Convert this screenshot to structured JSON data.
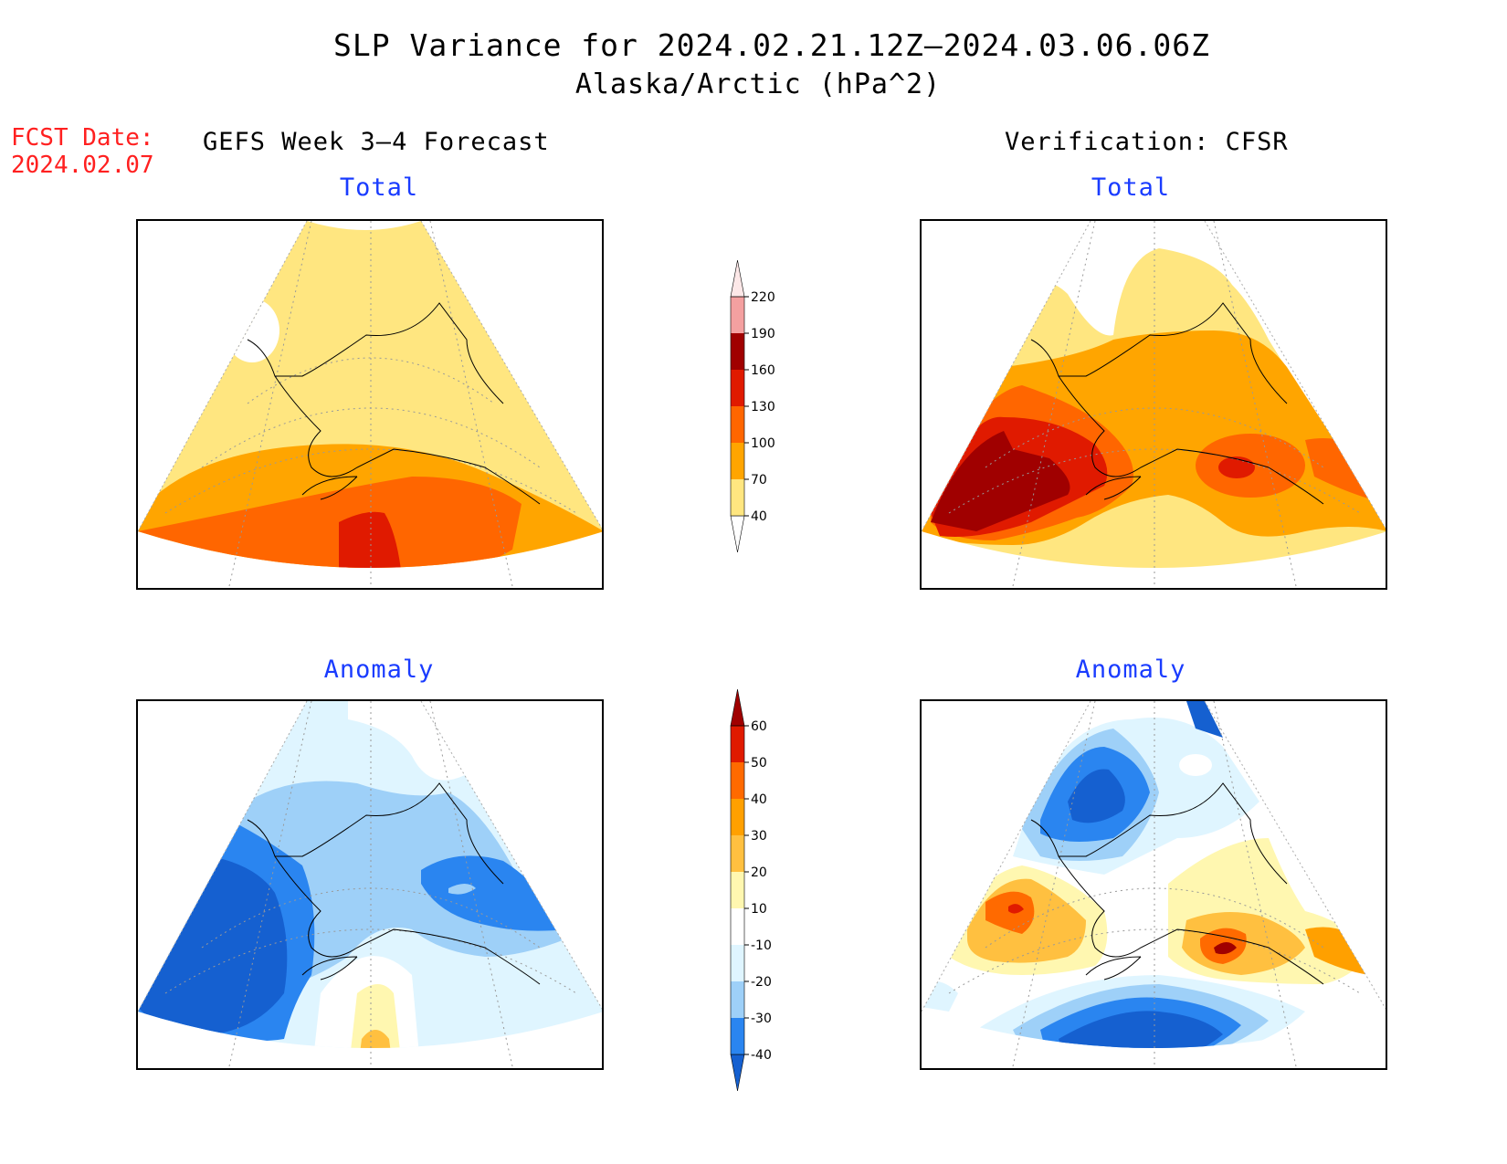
{
  "title": {
    "line1": "SLP Variance for 2024.02.21.12Z–2024.03.06.06Z",
    "line2": "Alaska/Arctic (hPa^2)"
  },
  "forecast_date": {
    "label": "FCST Date:",
    "value": "2024.02.07"
  },
  "columns": {
    "left": "GEFS Week 3–4 Forecast",
    "right": "Verification: CFSR"
  },
  "panels": [
    {
      "id": "forecast-total",
      "subtitle": "Total"
    },
    {
      "id": "verification-total",
      "subtitle": "Total"
    },
    {
      "id": "forecast-anomaly",
      "subtitle": "Anomaly"
    },
    {
      "id": "verification-anomaly",
      "subtitle": "Anomaly"
    }
  ],
  "colorbars": {
    "total": {
      "levels": [
        "40",
        "70",
        "100",
        "130",
        "160",
        "190",
        "220"
      ],
      "colors": [
        "#ffffff",
        "#ffe680",
        "#ffa500",
        "#ff6600",
        "#e01a00",
        "#a00000",
        "#f4a0a0",
        "#fde8e8"
      ]
    },
    "anomaly": {
      "levels": [
        "-40",
        "-30",
        "-20",
        "-10",
        "10",
        "20",
        "30",
        "40",
        "50",
        "60"
      ],
      "colors": [
        "#1560d0",
        "#2a85f0",
        "#9ed0f8",
        "#dff5ff",
        "#ffffff",
        "#fff7b0",
        "#ffc040",
        "#ffa000",
        "#ff6a00",
        "#e01a00",
        "#a00000"
      ]
    }
  },
  "colors": {
    "subtitle_blue": "#1a3cff",
    "fcst_red": "#ff2020"
  }
}
